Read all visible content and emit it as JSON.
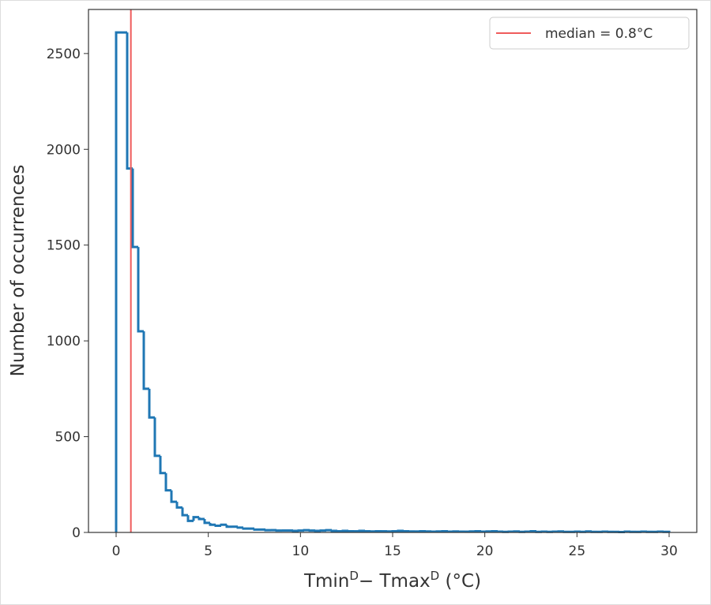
{
  "chart_data": {
    "type": "histogram",
    "ylabel": "Number of occurrences",
    "xlabel": [
      "Tmin",
      "D",
      "− Tmax",
      "D",
      " (°C)"
    ],
    "bins": [
      0,
      0.3,
      0.6,
      0.9,
      1.2,
      1.5,
      1.8,
      2.1,
      2.4,
      2.7,
      3,
      3.3,
      3.6,
      3.9,
      4.2,
      4.5,
      4.8,
      5.1,
      5.4,
      5.7,
      6,
      6.3,
      6.6,
      6.9,
      7.2,
      7.5,
      7.8,
      8.1,
      8.4,
      8.7,
      9,
      9.3,
      9.6,
      9.9,
      10.2,
      10.5,
      10.8,
      11.1,
      11.4,
      11.7,
      12,
      12.3,
      12.6,
      12.9,
      13.2,
      13.5,
      13.8,
      14.1,
      14.4,
      14.7,
      15,
      15.3,
      15.6,
      15.9,
      16.2,
      16.5,
      16.8,
      17.1,
      17.4,
      17.7,
      18,
      18.3,
      18.6,
      18.9,
      19.2,
      19.5,
      19.8,
      20.1,
      20.4,
      20.7,
      21,
      21.3,
      21.6,
      21.9,
      22.2,
      22.5,
      22.8,
      23.1,
      23.4,
      23.7,
      24,
      24.3,
      24.6,
      24.9,
      25.2,
      25.5,
      25.8,
      26.1,
      26.4,
      26.7,
      27,
      27.3,
      27.6,
      27.9,
      28.2,
      28.5,
      28.8,
      29.1,
      29.4,
      29.7,
      30
    ],
    "counts": [
      2610,
      2610,
      1900,
      1490,
      1050,
      750,
      600,
      400,
      310,
      220,
      160,
      130,
      90,
      60,
      80,
      70,
      50,
      40,
      35,
      40,
      30,
      30,
      25,
      20,
      20,
      15,
      15,
      12,
      12,
      10,
      10,
      10,
      8,
      10,
      12,
      10,
      8,
      10,
      12,
      8,
      6,
      8,
      6,
      6,
      8,
      6,
      5,
      6,
      6,
      5,
      6,
      8,
      6,
      5,
      5,
      6,
      5,
      4,
      5,
      6,
      4,
      5,
      4,
      4,
      5,
      6,
      4,
      5,
      6,
      4,
      3,
      4,
      5,
      3,
      4,
      6,
      3,
      4,
      3,
      4,
      5,
      3,
      3,
      4,
      3,
      5,
      3,
      3,
      4,
      3,
      3,
      2,
      4,
      3,
      3,
      4,
      3,
      3,
      4,
      3
    ],
    "color": "#1f77b4",
    "median": {
      "value": 0.8,
      "label": "median = 0.8°C"
    },
    "median_color": "#ef5b5b",
    "xlim": [
      -1.5,
      31.5
    ],
    "xticks": [
      0,
      5,
      10,
      15,
      20,
      25,
      30
    ],
    "ylim": [
      0,
      2730
    ],
    "yticks": [
      0,
      500,
      1000,
      1500,
      2000,
      2500
    ],
    "legend_loc": "upper right"
  }
}
